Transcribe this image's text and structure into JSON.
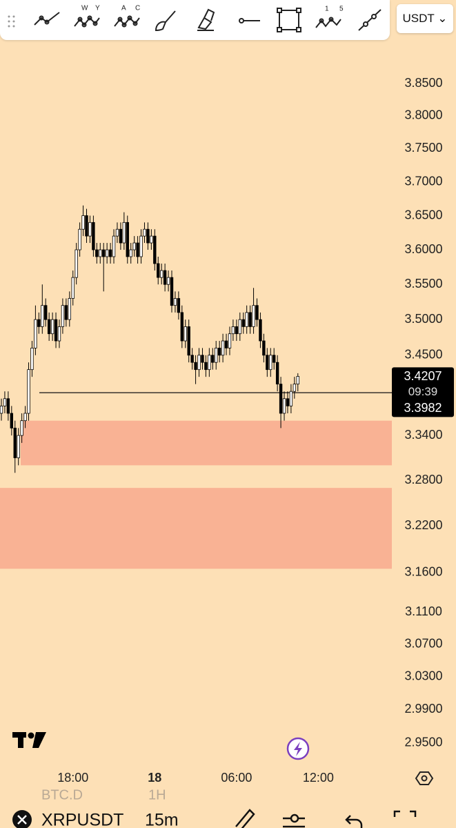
{
  "toolbar": {
    "letters": [
      "W",
      "Y",
      "A",
      "C",
      "1",
      "5"
    ],
    "currency": "USDT"
  },
  "chart_data": {
    "type": "candlestick",
    "log_scale": true,
    "categories": [
      null,
      null,
      null,
      null,
      null,
      null,
      null,
      null,
      null,
      null,
      null,
      null,
      null,
      null,
      null,
      null,
      null,
      null,
      null,
      null,
      null,
      "18:00",
      null,
      null,
      null,
      null,
      null,
      null,
      null,
      null,
      null,
      null,
      null,
      null,
      null,
      null,
      null,
      null,
      null,
      null,
      null,
      null,
      null,
      null,
      null,
      "18",
      null,
      null,
      null,
      null,
      null,
      null,
      null,
      null,
      null,
      null,
      null,
      null,
      null,
      null,
      null,
      null,
      null,
      null,
      null,
      null,
      null,
      null,
      null,
      "06:00",
      null,
      null,
      null,
      null,
      null,
      null,
      null,
      null,
      null,
      null,
      null,
      null,
      null,
      null,
      null,
      null,
      null,
      null,
      null,
      null,
      null,
      null,
      null,
      "12:00"
    ],
    "open": [
      3.37,
      3.38,
      3.39,
      3.37,
      3.35,
      3.31,
      3.34,
      3.36,
      3.37,
      3.43,
      3.46,
      3.5,
      3.49,
      3.52,
      3.5,
      3.48,
      3.5,
      3.47,
      3.49,
      3.52,
      3.5,
      3.53,
      3.56,
      3.6,
      3.63,
      3.65,
      3.62,
      3.64,
      3.6,
      3.59,
      3.6,
      3.59,
      3.6,
      3.59,
      3.62,
      3.63,
      3.61,
      3.64,
      3.59,
      3.6,
      3.61,
      3.59,
      3.62,
      3.63,
      3.61,
      3.62,
      3.58,
      3.56,
      3.57,
      3.55,
      3.56,
      3.52,
      3.53,
      3.51,
      3.47,
      3.49,
      3.45,
      3.44,
      3.43,
      3.45,
      3.44,
      3.43,
      3.45,
      3.44,
      3.46,
      3.45,
      3.47,
      3.46,
      3.48,
      3.49,
      3.48,
      3.5,
      3.49,
      3.51,
      3.49,
      3.52,
      3.5,
      3.47,
      3.45,
      3.43,
      3.45,
      3.44,
      3.41,
      3.37,
      3.39,
      3.38,
      3.4,
      3.41,
      null,
      null,
      null,
      null,
      null,
      null
    ],
    "high": [
      3.39,
      3.4,
      3.4,
      3.38,
      3.36,
      3.35,
      3.37,
      3.38,
      3.44,
      3.47,
      3.52,
      3.51,
      3.55,
      3.53,
      3.51,
      3.51,
      3.51,
      3.5,
      3.53,
      3.53,
      3.54,
      3.57,
      3.61,
      3.64,
      3.665,
      3.66,
      3.65,
      3.65,
      3.61,
      3.61,
      3.61,
      3.61,
      3.61,
      3.63,
      3.64,
      3.64,
      3.655,
      3.65,
      3.61,
      3.62,
      3.62,
      3.63,
      3.64,
      3.64,
      3.63,
      3.63,
      3.59,
      3.58,
      3.58,
      3.57,
      3.57,
      3.54,
      3.54,
      3.52,
      3.5,
      3.5,
      3.46,
      3.45,
      3.46,
      3.46,
      3.45,
      3.46,
      3.46,
      3.47,
      3.47,
      3.48,
      3.48,
      3.49,
      3.5,
      3.5,
      3.51,
      3.51,
      3.52,
      3.52,
      3.545,
      3.53,
      3.51,
      3.48,
      3.46,
      3.46,
      3.46,
      3.45,
      3.42,
      3.4,
      3.4,
      3.41,
      3.42,
      3.425,
      null,
      null,
      null,
      null,
      null,
      null
    ],
    "low": [
      3.36,
      3.37,
      3.36,
      3.34,
      3.29,
      3.3,
      3.33,
      3.35,
      3.36,
      3.42,
      3.45,
      3.48,
      3.48,
      3.49,
      3.47,
      3.47,
      3.46,
      3.46,
      3.48,
      3.49,
      3.49,
      3.52,
      3.55,
      3.59,
      3.62,
      3.61,
      3.61,
      3.59,
      3.58,
      3.58,
      3.54,
      3.58,
      3.58,
      3.58,
      3.61,
      3.6,
      3.6,
      3.58,
      3.58,
      3.59,
      3.58,
      3.58,
      3.61,
      3.6,
      3.6,
      3.57,
      3.55,
      3.55,
      3.54,
      3.54,
      3.51,
      3.51,
      3.5,
      3.46,
      3.46,
      3.44,
      3.43,
      3.41,
      3.42,
      3.43,
      3.42,
      3.42,
      3.43,
      3.43,
      3.44,
      3.44,
      3.45,
      3.45,
      3.47,
      3.47,
      3.47,
      3.48,
      3.48,
      3.48,
      3.48,
      3.49,
      3.46,
      3.44,
      3.42,
      3.42,
      3.43,
      3.4,
      3.35,
      3.36,
      3.37,
      3.37,
      3.39,
      3.4,
      null,
      null,
      null,
      null,
      null,
      null
    ],
    "close": [
      3.38,
      3.39,
      3.37,
      3.35,
      3.31,
      3.34,
      3.36,
      3.37,
      3.43,
      3.46,
      3.5,
      3.49,
      3.52,
      3.5,
      3.48,
      3.5,
      3.47,
      3.49,
      3.52,
      3.5,
      3.53,
      3.56,
      3.6,
      3.63,
      3.65,
      3.62,
      3.64,
      3.6,
      3.59,
      3.6,
      3.59,
      3.6,
      3.59,
      3.62,
      3.63,
      3.61,
      3.64,
      3.59,
      3.6,
      3.61,
      3.59,
      3.62,
      3.63,
      3.61,
      3.62,
      3.58,
      3.56,
      3.57,
      3.55,
      3.56,
      3.52,
      3.53,
      3.51,
      3.47,
      3.49,
      3.45,
      3.44,
      3.43,
      3.45,
      3.44,
      3.43,
      3.45,
      3.44,
      3.46,
      3.45,
      3.47,
      3.46,
      3.48,
      3.49,
      3.48,
      3.5,
      3.49,
      3.51,
      3.49,
      3.52,
      3.5,
      3.47,
      3.45,
      3.43,
      3.45,
      3.44,
      3.41,
      3.37,
      3.39,
      3.38,
      3.4,
      3.41,
      3.4207,
      null,
      null,
      null,
      null,
      null,
      null
    ],
    "ylim": [
      2.931,
      3.916
    ],
    "yticks": [
      {
        "value": 3.85,
        "label": "3.8500"
      },
      {
        "value": 3.8,
        "label": "3.8000"
      },
      {
        "value": 3.75,
        "label": "3.7500"
      },
      {
        "value": 3.7,
        "label": "3.7000"
      },
      {
        "value": 3.65,
        "label": "3.6500"
      },
      {
        "value": 3.6,
        "label": "3.6000"
      },
      {
        "value": 3.55,
        "label": "3.5500"
      },
      {
        "value": 3.5,
        "label": "3.5000"
      },
      {
        "value": 3.45,
        "label": "3.4500"
      },
      {
        "value": 3.34,
        "label": "3.3400"
      },
      {
        "value": 3.28,
        "label": "3.2800"
      },
      {
        "value": 3.22,
        "label": "3.2200"
      },
      {
        "value": 3.16,
        "label": "3.1600"
      },
      {
        "value": 3.11,
        "label": "3.1100"
      },
      {
        "value": 3.07,
        "label": "3.0700"
      },
      {
        "value": 3.03,
        "label": "3.0300"
      },
      {
        "value": 2.99,
        "label": "2.9900"
      },
      {
        "value": 2.95,
        "label": "2.9500"
      }
    ],
    "last_price_label": "3.4207",
    "countdown": "09:39",
    "level": {
      "value": 3.3982,
      "label": "3.3982"
    },
    "zones": [
      {
        "top": 3.36,
        "bottom": 3.3
      },
      {
        "top": 3.27,
        "bottom": 3.165
      }
    ],
    "up_color": "#ffffff",
    "down_color": "#000000",
    "zone_color": "#f9b294"
  },
  "bottom_bar": {
    "faded": [
      "BTC.D",
      "1H"
    ],
    "symbol": "XRPUSDT",
    "interval": "15m"
  }
}
